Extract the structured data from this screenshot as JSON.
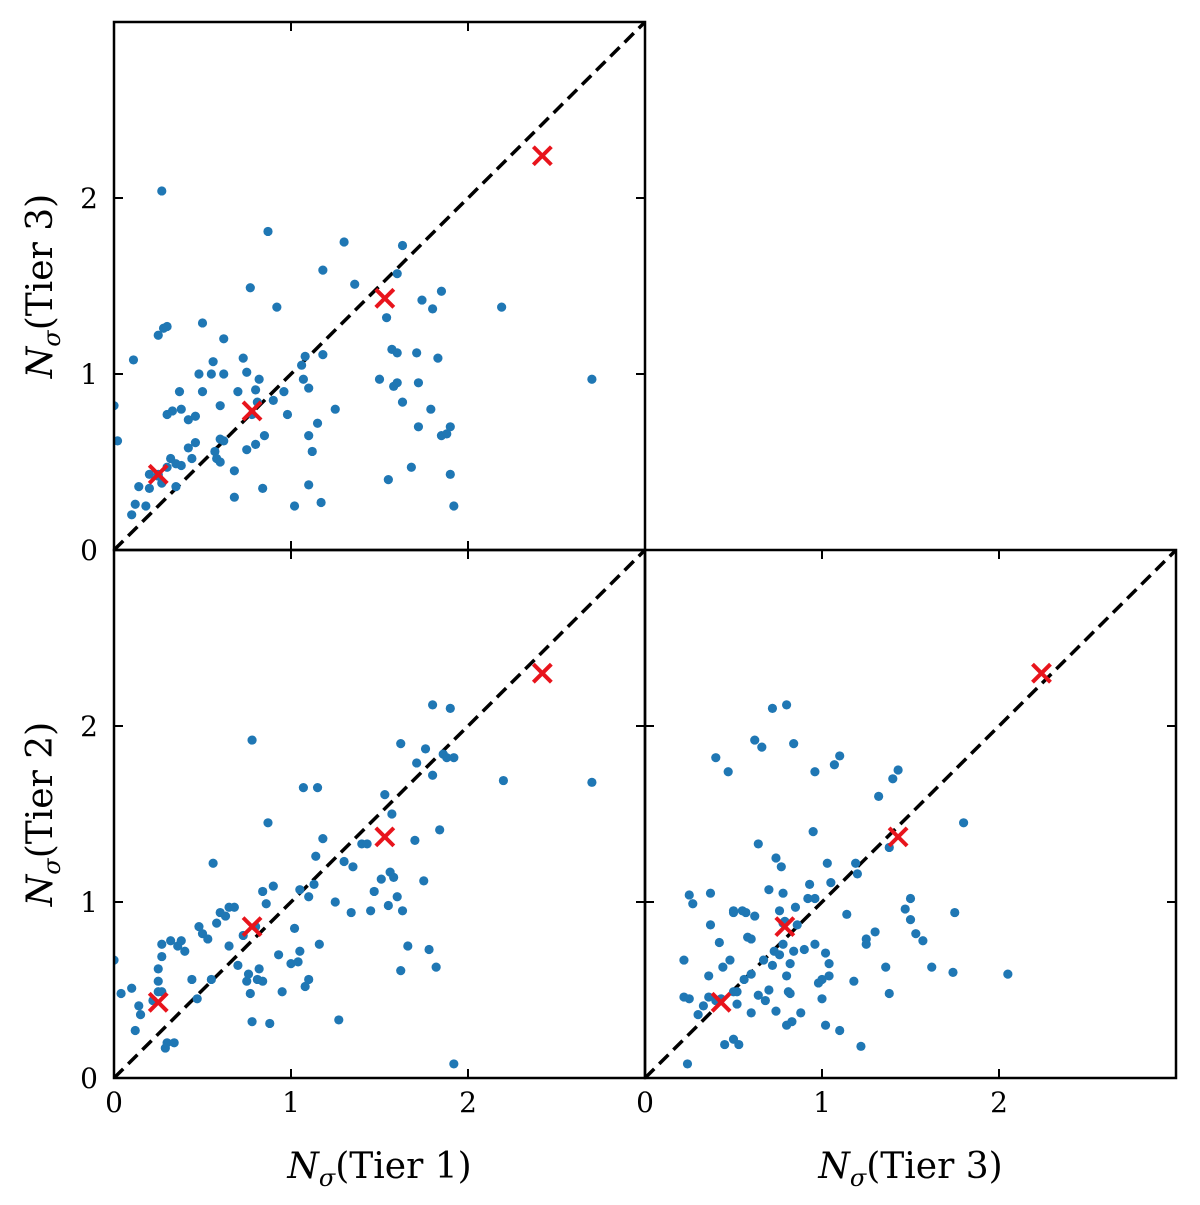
{
  "figure": {
    "colors": {
      "points": "#1f77b4",
      "markers": "#e8141c",
      "diagonal": "#000000"
    }
  },
  "chart_data": [
    {
      "type": "scatter",
      "id": "top-left",
      "xlabel": {
        "symbol": "N",
        "sub": "σ",
        "text": "(Tier 1)"
      },
      "ylabel": {
        "symbol": "N",
        "sub": "σ",
        "text": "(Tier 3)"
      },
      "xlim": [
        0,
        3
      ],
      "ylim": [
        0,
        3
      ],
      "xticks": [
        "0",
        "1",
        "2"
      ],
      "yticks": [
        "0",
        "1",
        "2"
      ],
      "show_xticklabels": false,
      "diagonal": true,
      "points": [
        [
          0.25,
          0.43
        ],
        [
          0.14,
          0.36
        ],
        [
          0.12,
          0.26
        ],
        [
          0.1,
          0.2
        ],
        [
          0.18,
          0.25
        ],
        [
          0.2,
          0.43
        ],
        [
          0.27,
          0.38
        ],
        [
          0.3,
          0.47
        ],
        [
          0.32,
          0.52
        ],
        [
          0.35,
          0.36
        ],
        [
          0.3,
          0.77
        ],
        [
          0.28,
          1.26
        ],
        [
          0.3,
          1.27
        ],
        [
          0.25,
          1.22
        ],
        [
          0.27,
          2.04
        ],
        [
          0.11,
          1.08
        ],
        [
          0.0,
          0.82
        ],
        [
          0.02,
          0.62
        ],
        [
          0.38,
          0.8
        ],
        [
          0.37,
          0.9
        ],
        [
          0.42,
          0.74
        ],
        [
          0.44,
          0.52
        ],
        [
          0.38,
          0.48
        ],
        [
          0.35,
          0.49
        ],
        [
          0.46,
          0.61
        ],
        [
          0.5,
          0.9
        ],
        [
          0.48,
          1.0
        ],
        [
          0.5,
          1.29
        ],
        [
          0.55,
          1.0
        ],
        [
          0.56,
          1.07
        ],
        [
          0.57,
          0.56
        ],
        [
          0.58,
          0.52
        ],
        [
          0.6,
          0.63
        ],
        [
          0.62,
          0.62
        ],
        [
          0.6,
          0.82
        ],
        [
          0.62,
          1.2
        ],
        [
          0.62,
          1.0
        ],
        [
          0.68,
          0.45
        ],
        [
          0.68,
          0.3
        ],
        [
          0.7,
          0.9
        ],
        [
          0.73,
          1.09
        ],
        [
          0.75,
          1.01
        ],
        [
          0.75,
          0.57
        ],
        [
          0.77,
          1.49
        ],
        [
          0.78,
          0.77
        ],
        [
          0.8,
          0.6
        ],
        [
          0.82,
          0.97
        ],
        [
          0.8,
          0.91
        ],
        [
          0.81,
          0.84
        ],
        [
          0.84,
          0.35
        ],
        [
          0.85,
          0.65
        ],
        [
          0.87,
          1.81
        ],
        [
          0.9,
          0.85
        ],
        [
          0.92,
          1.38
        ],
        [
          0.96,
          0.9
        ],
        [
          0.98,
          0.77
        ],
        [
          1.02,
          0.25
        ],
        [
          1.06,
          1.05
        ],
        [
          1.07,
          0.97
        ],
        [
          1.08,
          1.1
        ],
        [
          1.1,
          0.65
        ],
        [
          1.1,
          0.92
        ],
        [
          1.1,
          0.37
        ],
        [
          1.12,
          0.56
        ],
        [
          1.15,
          0.72
        ],
        [
          1.17,
          0.27
        ],
        [
          1.18,
          1.59
        ],
        [
          1.18,
          1.11
        ],
        [
          1.25,
          0.8
        ],
        [
          1.3,
          1.75
        ],
        [
          1.36,
          1.51
        ],
        [
          1.5,
          0.97
        ],
        [
          1.54,
          1.32
        ],
        [
          1.55,
          0.4
        ],
        [
          1.57,
          1.14
        ],
        [
          1.58,
          0.93
        ],
        [
          1.6,
          0.95
        ],
        [
          1.6,
          1.57
        ],
        [
          1.63,
          1.73
        ],
        [
          1.63,
          0.84
        ],
        [
          1.6,
          1.12
        ],
        [
          1.68,
          0.47
        ],
        [
          1.71,
          1.12
        ],
        [
          1.72,
          0.95
        ],
        [
          1.72,
          0.7
        ],
        [
          1.74,
          1.42
        ],
        [
          1.79,
          0.8
        ],
        [
          1.8,
          1.37
        ],
        [
          1.83,
          1.09
        ],
        [
          1.85,
          1.47
        ],
        [
          1.85,
          0.65
        ],
        [
          1.9,
          0.7
        ],
        [
          1.9,
          0.43
        ],
        [
          1.92,
          0.25
        ],
        [
          1.88,
          0.66
        ],
        [
          2.19,
          1.38
        ],
        [
          2.7,
          0.97
        ],
        [
          0.6,
          0.5
        ],
        [
          0.33,
          0.79
        ],
        [
          0.46,
          0.76
        ],
        [
          0.25,
          0.42
        ],
        [
          0.42,
          0.58
        ],
        [
          0.2,
          0.35
        ]
      ],
      "markers": [
        [
          0.25,
          0.43
        ],
        [
          0.78,
          0.79
        ],
        [
          1.53,
          1.43
        ],
        [
          2.42,
          2.24
        ]
      ]
    },
    {
      "type": "scatter",
      "id": "bottom-left",
      "xlabel": {
        "symbol": "N",
        "sub": "σ",
        "text": "(Tier 1)"
      },
      "ylabel": {
        "symbol": "N",
        "sub": "σ",
        "text": "(Tier 2)"
      },
      "xlim": [
        0,
        3
      ],
      "ylim": [
        0,
        3
      ],
      "xticks": [
        "0",
        "1",
        "2"
      ],
      "yticks": [
        "0",
        "1",
        "2"
      ],
      "diagonal": true,
      "points": [
        [
          0.0,
          0.67
        ],
        [
          0.04,
          0.48
        ],
        [
          0.1,
          0.51
        ],
        [
          0.12,
          0.27
        ],
        [
          0.14,
          0.41
        ],
        [
          0.15,
          0.36
        ],
        [
          0.22,
          0.44
        ],
        [
          0.25,
          0.49
        ],
        [
          0.25,
          0.55
        ],
        [
          0.25,
          0.62
        ],
        [
          0.27,
          0.69
        ],
        [
          0.27,
          0.76
        ],
        [
          0.27,
          0.49
        ],
        [
          0.29,
          0.17
        ],
        [
          0.3,
          0.2
        ],
        [
          0.32,
          0.78
        ],
        [
          0.34,
          0.2
        ],
        [
          0.36,
          0.75
        ],
        [
          0.38,
          0.78
        ],
        [
          0.4,
          0.72
        ],
        [
          0.44,
          0.56
        ],
        [
          0.47,
          0.45
        ],
        [
          0.48,
          0.86
        ],
        [
          0.5,
          0.82
        ],
        [
          0.53,
          0.79
        ],
        [
          0.55,
          0.56
        ],
        [
          0.56,
          1.22
        ],
        [
          0.58,
          0.88
        ],
        [
          0.6,
          0.94
        ],
        [
          0.63,
          0.92
        ],
        [
          0.65,
          0.97
        ],
        [
          0.68,
          0.97
        ],
        [
          0.7,
          0.64
        ],
        [
          0.73,
          0.81
        ],
        [
          0.75,
          0.55
        ],
        [
          0.76,
          0.59
        ],
        [
          0.77,
          0.48
        ],
        [
          0.78,
          0.32
        ],
        [
          0.78,
          1.92
        ],
        [
          0.8,
          0.86
        ],
        [
          0.81,
          0.56
        ],
        [
          0.82,
          0.62
        ],
        [
          0.84,
          0.55
        ],
        [
          0.84,
          1.06
        ],
        [
          0.86,
          0.99
        ],
        [
          0.87,
          1.45
        ],
        [
          0.88,
          0.31
        ],
        [
          0.9,
          1.09
        ],
        [
          0.95,
          0.49
        ],
        [
          1.0,
          0.65
        ],
        [
          1.02,
          0.85
        ],
        [
          1.04,
          0.66
        ],
        [
          1.05,
          0.72
        ],
        [
          1.07,
          1.65
        ],
        [
          1.08,
          0.52
        ],
        [
          1.1,
          0.56
        ],
        [
          1.1,
          1.03
        ],
        [
          1.13,
          1.1
        ],
        [
          1.14,
          1.26
        ],
        [
          1.15,
          1.65
        ],
        [
          1.16,
          0.76
        ],
        [
          1.18,
          1.36
        ],
        [
          1.25,
          1.0
        ],
        [
          1.27,
          0.33
        ],
        [
          1.3,
          1.23
        ],
        [
          1.34,
          0.94
        ],
        [
          1.35,
          1.2
        ],
        [
          1.4,
          1.33
        ],
        [
          1.43,
          1.33
        ],
        [
          1.47,
          1.06
        ],
        [
          1.51,
          1.13
        ],
        [
          1.53,
          1.61
        ],
        [
          1.55,
          0.98
        ],
        [
          1.56,
          1.17
        ],
        [
          1.57,
          1.5
        ],
        [
          1.58,
          1.14
        ],
        [
          1.62,
          1.9
        ],
        [
          1.62,
          0.61
        ],
        [
          1.63,
          0.95
        ],
        [
          1.66,
          0.75
        ],
        [
          1.7,
          1.35
        ],
        [
          1.71,
          1.79
        ],
        [
          1.75,
          1.12
        ],
        [
          1.76,
          1.87
        ],
        [
          1.8,
          2.12
        ],
        [
          1.8,
          1.72
        ],
        [
          1.82,
          0.63
        ],
        [
          1.84,
          1.41
        ],
        [
          1.86,
          1.84
        ],
        [
          1.88,
          1.82
        ],
        [
          1.9,
          2.1
        ],
        [
          1.92,
          1.82
        ],
        [
          1.92,
          0.08
        ],
        [
          2.2,
          1.69
        ],
        [
          2.7,
          1.68
        ],
        [
          1.78,
          0.73
        ],
        [
          1.6,
          1.03
        ],
        [
          1.05,
          1.07
        ],
        [
          1.45,
          0.95
        ],
        [
          0.93,
          0.7
        ],
        [
          0.65,
          0.75
        ]
      ],
      "markers": [
        [
          0.25,
          0.43
        ],
        [
          0.78,
          0.86
        ],
        [
          1.53,
          1.37
        ],
        [
          2.42,
          2.3
        ]
      ]
    },
    {
      "type": "scatter",
      "id": "bottom-right",
      "xlabel": {
        "symbol": "N",
        "sub": "σ",
        "text": "(Tier 3)"
      },
      "ylabel": {
        "symbol": "N",
        "sub": "σ",
        "text": "(Tier 2)"
      },
      "xlim": [
        0,
        3
      ],
      "ylim": [
        0,
        3
      ],
      "xticks": [
        "0",
        "1",
        "2"
      ],
      "yticks": [
        "0",
        "1",
        "2"
      ],
      "show_yticklabels": false,
      "diagonal": true,
      "points": [
        [
          0.22,
          0.46
        ],
        [
          0.22,
          0.67
        ],
        [
          0.24,
          0.08
        ],
        [
          0.25,
          1.04
        ],
        [
          0.25,
          0.45
        ],
        [
          0.27,
          0.99
        ],
        [
          0.3,
          0.36
        ],
        [
          0.33,
          0.41
        ],
        [
          0.36,
          0.46
        ],
        [
          0.36,
          0.58
        ],
        [
          0.37,
          0.87
        ],
        [
          0.37,
          1.05
        ],
        [
          0.4,
          0.44
        ],
        [
          0.4,
          1.82
        ],
        [
          0.42,
          0.77
        ],
        [
          0.43,
          0.45
        ],
        [
          0.44,
          0.63
        ],
        [
          0.45,
          0.19
        ],
        [
          0.47,
          1.74
        ],
        [
          0.48,
          0.67
        ],
        [
          0.5,
          0.22
        ],
        [
          0.5,
          0.49
        ],
        [
          0.5,
          0.94
        ],
        [
          0.52,
          0.42
        ],
        [
          0.52,
          0.49
        ],
        [
          0.53,
          0.19
        ],
        [
          0.55,
          0.95
        ],
        [
          0.56,
          0.56
        ],
        [
          0.57,
          0.94
        ],
        [
          0.58,
          0.8
        ],
        [
          0.6,
          0.37
        ],
        [
          0.6,
          0.59
        ],
        [
          0.6,
          0.79
        ],
        [
          0.62,
          0.92
        ],
        [
          0.62,
          1.92
        ],
        [
          0.64,
          0.47
        ],
        [
          0.64,
          1.33
        ],
        [
          0.66,
          1.88
        ],
        [
          0.67,
          0.67
        ],
        [
          0.68,
          0.44
        ],
        [
          0.7,
          0.5
        ],
        [
          0.7,
          1.07
        ],
        [
          0.72,
          2.1
        ],
        [
          0.72,
          0.64
        ],
        [
          0.73,
          0.72
        ],
        [
          0.74,
          1.25
        ],
        [
          0.74,
          0.38
        ],
        [
          0.76,
          0.7
        ],
        [
          0.76,
          0.95
        ],
        [
          0.77,
          1.2
        ],
        [
          0.78,
          1.05
        ],
        [
          0.78,
          0.76
        ],
        [
          0.79,
          0.89
        ],
        [
          0.8,
          2.12
        ],
        [
          0.8,
          0.3
        ],
        [
          0.8,
          0.58
        ],
        [
          0.81,
          0.49
        ],
        [
          0.82,
          0.65
        ],
        [
          0.82,
          0.48
        ],
        [
          0.83,
          0.32
        ],
        [
          0.84,
          1.9
        ],
        [
          0.84,
          0.72
        ],
        [
          0.85,
          0.97
        ],
        [
          0.86,
          0.87
        ],
        [
          0.88,
          0.37
        ],
        [
          0.9,
          0.73
        ],
        [
          0.92,
          1.02
        ],
        [
          0.93,
          1.1
        ],
        [
          0.95,
          1.4
        ],
        [
          0.96,
          0.76
        ],
        [
          0.96,
          1.74
        ],
        [
          0.98,
          0.54
        ],
        [
          1.0,
          0.56
        ],
        [
          1.0,
          0.45
        ],
        [
          1.02,
          0.71
        ],
        [
          1.02,
          0.3
        ],
        [
          1.03,
          1.22
        ],
        [
          1.04,
          0.65
        ],
        [
          1.04,
          0.58
        ],
        [
          1.05,
          1.11
        ],
        [
          1.07,
          1.78
        ],
        [
          1.1,
          1.83
        ],
        [
          1.1,
          0.27
        ],
        [
          1.14,
          0.93
        ],
        [
          1.18,
          0.55
        ],
        [
          1.19,
          1.22
        ],
        [
          1.2,
          1.16
        ],
        [
          1.22,
          0.18
        ],
        [
          1.25,
          0.76
        ],
        [
          1.25,
          0.79
        ],
        [
          1.3,
          0.83
        ],
        [
          1.32,
          1.6
        ],
        [
          1.36,
          0.63
        ],
        [
          1.38,
          1.31
        ],
        [
          1.38,
          0.48
        ],
        [
          1.4,
          1.7
        ],
        [
          1.43,
          1.75
        ],
        [
          1.47,
          0.96
        ],
        [
          1.5,
          1.02
        ],
        [
          1.53,
          0.82
        ],
        [
          1.57,
          0.78
        ],
        [
          1.62,
          0.63
        ],
        [
          1.75,
          0.94
        ],
        [
          1.8,
          1.45
        ],
        [
          2.05,
          0.59
        ],
        [
          1.74,
          0.6
        ],
        [
          1.5,
          0.9
        ],
        [
          0.96,
          1.02
        ],
        [
          0.78,
          0.88
        ],
        [
          0.5,
          0.95
        ]
      ],
      "markers": [
        [
          0.43,
          0.43
        ],
        [
          0.79,
          0.86
        ],
        [
          1.43,
          1.37
        ],
        [
          2.24,
          2.3
        ]
      ]
    }
  ]
}
